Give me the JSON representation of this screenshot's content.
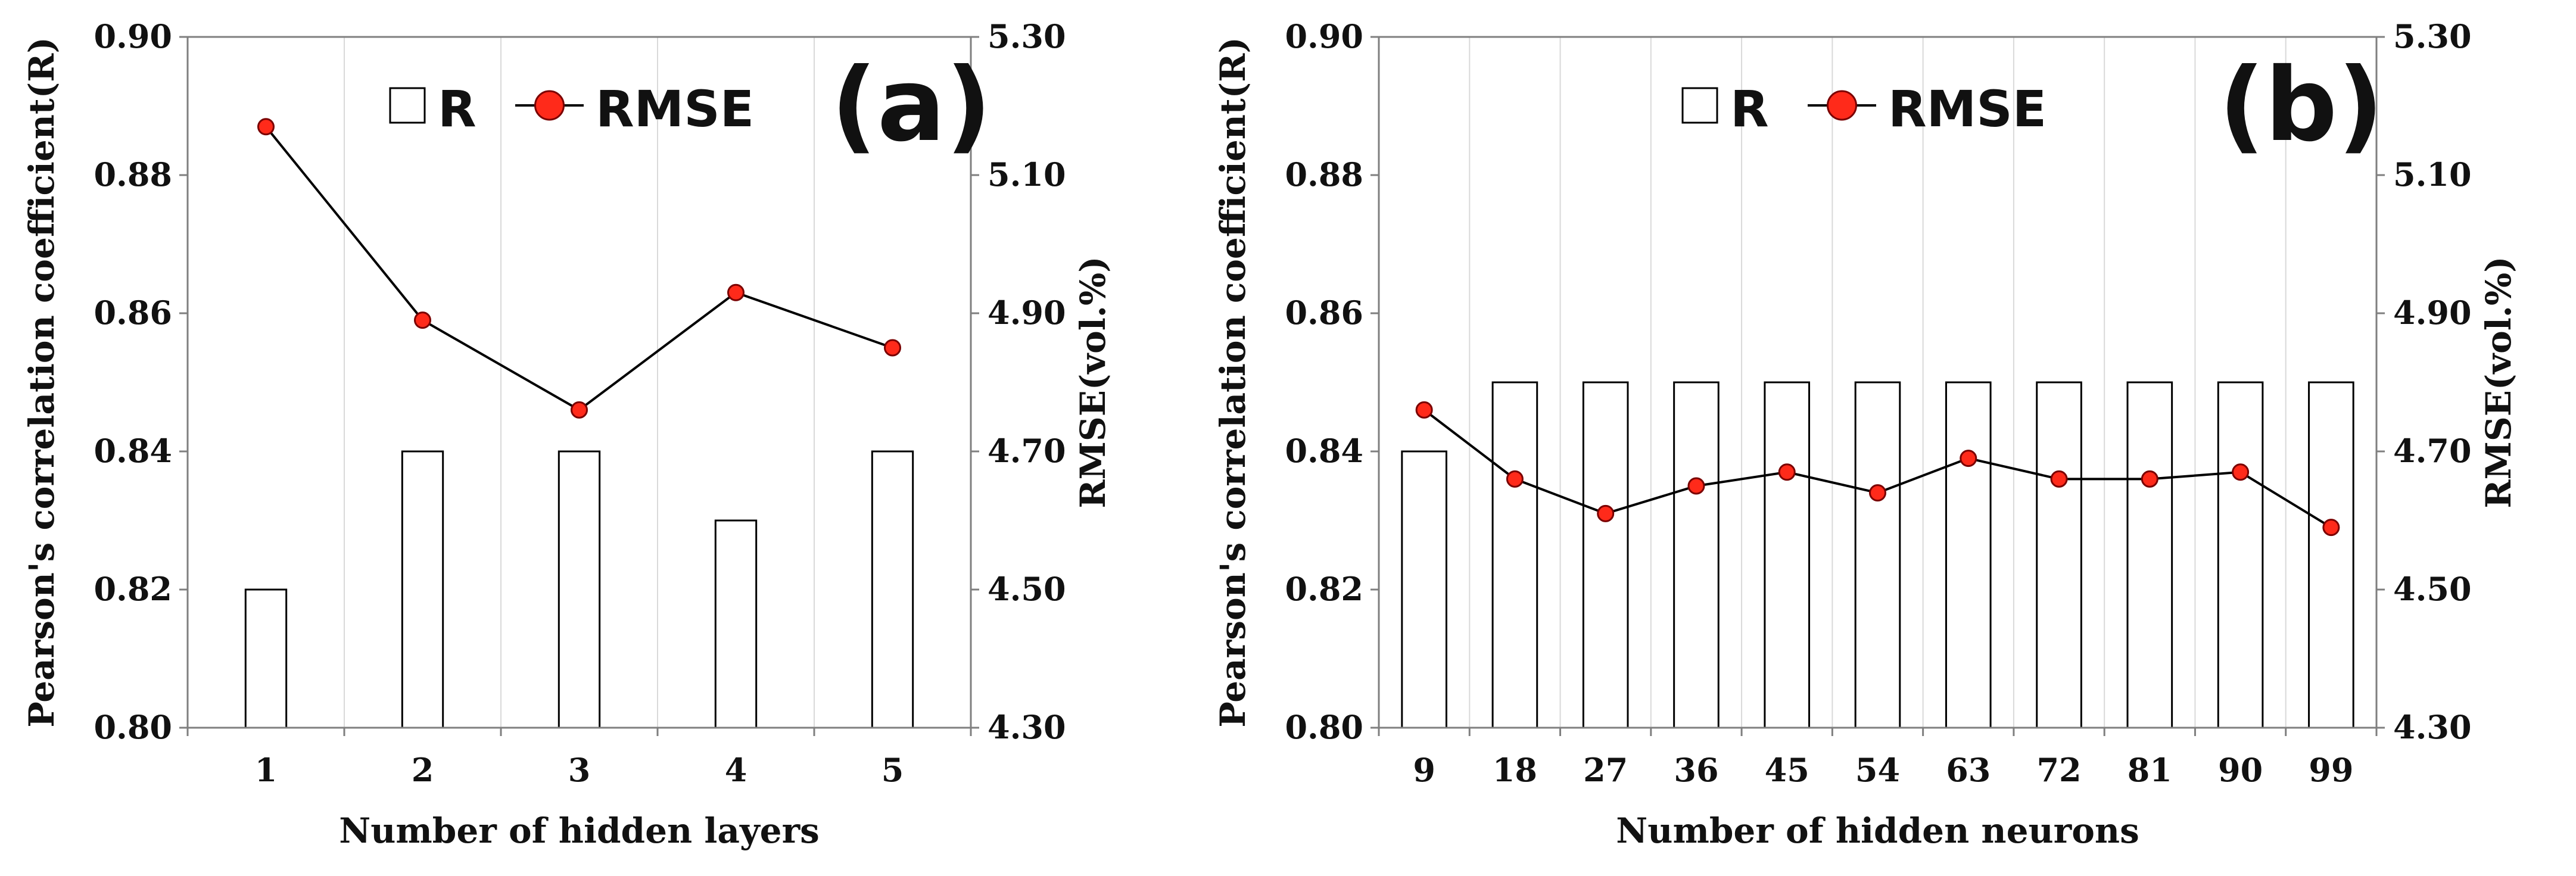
{
  "chart_data": [
    {
      "type": "bar",
      "panel_label": "(a)",
      "xlabel": "Number of hidden layers",
      "ylabel_left": "Pearson's correlation coefficient(R)",
      "ylabel_right": "RMSE(vol.%)",
      "categories": [
        "1",
        "2",
        "3",
        "4",
        "5"
      ],
      "ylim_left": [
        0.8,
        0.9
      ],
      "yticks_left": [
        "0.80",
        "0.82",
        "0.84",
        "0.86",
        "0.88",
        "0.90"
      ],
      "ylim_right": [
        4.3,
        5.3
      ],
      "yticks_right": [
        "4.30",
        "4.50",
        "4.70",
        "4.90",
        "5.10",
        "5.30"
      ],
      "grid": "vertical",
      "legend_position": "top-center",
      "series": [
        {
          "name": "R",
          "type": "bar",
          "axis": "left",
          "values": [
            0.82,
            0.84,
            0.84,
            0.83,
            0.84
          ]
        },
        {
          "name": "RMSE",
          "type": "line",
          "axis": "right",
          "values": [
            5.17,
            4.89,
            4.76,
            4.93,
            4.85
          ]
        }
      ]
    },
    {
      "type": "bar",
      "panel_label": "(b)",
      "xlabel": "Number of hidden neurons",
      "ylabel_left": "Pearson's correlation coefficient(R)",
      "ylabel_right": "RMSE(vol.%)",
      "categories": [
        "9",
        "18",
        "27",
        "36",
        "45",
        "54",
        "63",
        "72",
        "81",
        "90",
        "99"
      ],
      "ylim_left": [
        0.8,
        0.9
      ],
      "yticks_left": [
        "0.80",
        "0.82",
        "0.84",
        "0.86",
        "0.88",
        "0.90"
      ],
      "ylim_right": [
        4.3,
        5.3
      ],
      "yticks_right": [
        "4.30",
        "4.50",
        "4.70",
        "4.90",
        "5.10",
        "5.30"
      ],
      "grid": "vertical",
      "legend_position": "top-center",
      "series": [
        {
          "name": "R",
          "type": "bar",
          "axis": "left",
          "values": [
            0.84,
            0.85,
            0.85,
            0.85,
            0.85,
            0.85,
            0.85,
            0.85,
            0.85,
            0.85,
            0.85
          ]
        },
        {
          "name": "RMSE",
          "type": "line",
          "axis": "right",
          "values": [
            4.76,
            4.66,
            4.61,
            4.65,
            4.67,
            4.64,
            4.69,
            4.66,
            4.66,
            4.67,
            4.59
          ]
        }
      ]
    }
  ]
}
